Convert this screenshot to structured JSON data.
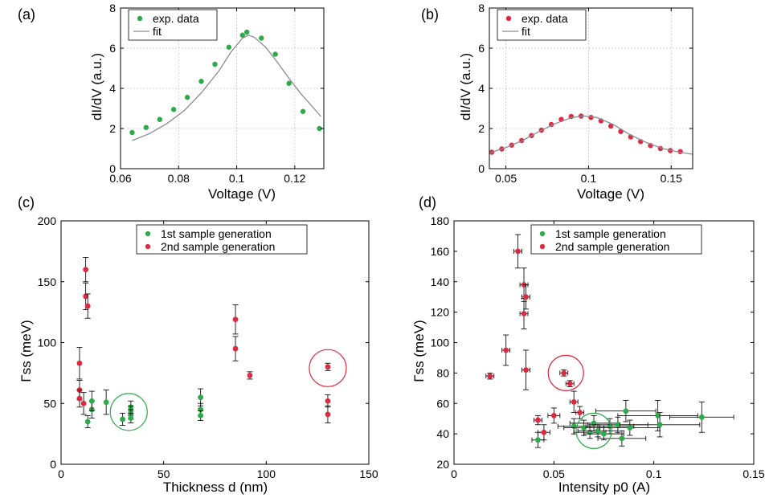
{
  "colors": {
    "green": "#2eaa4a",
    "red": "#dd2a3f",
    "fit": "#8c8a96",
    "axis": "#000000",
    "grid": "#b8b8b8",
    "errorbar": "#111111"
  },
  "chart_data": [
    {
      "panel": "(a)",
      "type": "scatter",
      "xlabel": "Voltage (V)",
      "ylabel": "dI/dV (a.u.)",
      "xlim": [
        0.06,
        0.13
      ],
      "ylim": [
        0,
        8
      ],
      "xticks": [
        "0.06",
        "0.08",
        "0.1",
        "0.12"
      ],
      "xtick_values": [
        0.06,
        0.08,
        0.1,
        0.12
      ],
      "yticks": [
        "0",
        "2",
        "4",
        "6",
        "8"
      ],
      "ytick_values": [
        0,
        2,
        4,
        6,
        8
      ],
      "grid": true,
      "legend_position": "top-left",
      "series": [
        {
          "name": "exp. data",
          "kind": "points",
          "color": "green",
          "x": [
            0.064,
            0.0688,
            0.0735,
            0.0783,
            0.083,
            0.0878,
            0.0925,
            0.0973,
            0.102,
            0.1035,
            0.1085,
            0.1133,
            0.118,
            0.1228,
            0.1285
          ],
          "y": [
            1.8,
            2.05,
            2.45,
            2.95,
            3.55,
            4.35,
            5.2,
            6.05,
            6.65,
            6.8,
            6.5,
            5.7,
            4.25,
            2.85,
            2.0
          ]
        },
        {
          "name": "fit",
          "kind": "line",
          "color": "fit",
          "x": [
            0.064,
            0.07,
            0.076,
            0.082,
            0.088,
            0.094,
            0.098,
            0.102,
            0.104,
            0.106,
            0.11,
            0.114,
            0.118,
            0.122,
            0.126,
            0.129
          ],
          "y": [
            1.4,
            1.75,
            2.25,
            2.9,
            3.8,
            4.9,
            5.8,
            6.5,
            6.65,
            6.55,
            6.05,
            5.3,
            4.5,
            3.75,
            3.1,
            2.6
          ]
        }
      ]
    },
    {
      "panel": "(b)",
      "type": "scatter",
      "xlabel": "Voltage (V)",
      "ylabel": "dI/dV (a.u.)",
      "xlim": [
        0.04,
        0.163
      ],
      "ylim": [
        0,
        8
      ],
      "xticks": [
        "0.05",
        "0.1",
        "0.15"
      ],
      "xtick_values": [
        0.05,
        0.1,
        0.15
      ],
      "yticks": [
        "0",
        "2",
        "4",
        "6",
        "8"
      ],
      "ytick_values": [
        0,
        2,
        4,
        6,
        8
      ],
      "grid": true,
      "legend_position": "top-left",
      "series": [
        {
          "name": "exp. data",
          "kind": "points",
          "color": "red",
          "x": [
            0.0415,
            0.0475,
            0.0535,
            0.0595,
            0.0655,
            0.0715,
            0.0775,
            0.0835,
            0.0895,
            0.0955,
            0.1015,
            0.1075,
            0.1135,
            0.1195,
            0.1255,
            0.1315,
            0.1375,
            0.1435,
            0.1495,
            0.1555
          ],
          "y": [
            0.82,
            0.98,
            1.17,
            1.4,
            1.65,
            1.92,
            2.2,
            2.45,
            2.6,
            2.62,
            2.55,
            2.38,
            2.12,
            1.85,
            1.58,
            1.35,
            1.15,
            1.0,
            0.9,
            0.85
          ]
        },
        {
          "name": "fit",
          "kind": "line",
          "color": "fit",
          "x": [
            0.04,
            0.05,
            0.06,
            0.07,
            0.08,
            0.09,
            0.097,
            0.105,
            0.115,
            0.125,
            0.135,
            0.145,
            0.155,
            0.163
          ],
          "y": [
            0.78,
            1.05,
            1.4,
            1.85,
            2.25,
            2.55,
            2.63,
            2.55,
            2.2,
            1.7,
            1.3,
            1.0,
            0.82,
            0.72
          ]
        }
      ]
    },
    {
      "panel": "(c)",
      "type": "scatter",
      "xlabel": "Thickness d (nm)",
      "ylabel": "Γss (meV)",
      "xlim": [
        0,
        150
      ],
      "ylim": [
        0,
        200
      ],
      "xticks": [
        "0",
        "50",
        "100",
        "150"
      ],
      "xtick_values": [
        0,
        50,
        100,
        150
      ],
      "yticks": [
        "0",
        "50",
        "100",
        "150",
        "200"
      ],
      "ytick_values": [
        0,
        50,
        100,
        150,
        200
      ],
      "grid": false,
      "legend_position": "top-center",
      "series": [
        {
          "name": "1st sample generation",
          "color": "green",
          "points": [
            {
              "x": 13,
              "y": 35,
              "err": 5
            },
            {
              "x": 15,
              "y": 45,
              "err": 7
            },
            {
              "x": 15,
              "y": 52,
              "err": 8
            },
            {
              "x": 22,
              "y": 51,
              "err": 10
            },
            {
              "x": 30,
              "y": 37,
              "err": 5
            },
            {
              "x": 34,
              "y": 47,
              "err": 5
            },
            {
              "x": 34,
              "y": 44,
              "err": 4
            },
            {
              "x": 34,
              "y": 41,
              "err": 4
            },
            {
              "x": 34,
              "y": 38,
              "err": 4
            },
            {
              "x": 68,
              "y": 55,
              "err": 7
            },
            {
              "x": 68,
              "y": 45,
              "err": 5
            },
            {
              "x": 68,
              "y": 40,
              "err": 4
            }
          ]
        },
        {
          "name": "2nd sample generation",
          "color": "red",
          "points": [
            {
              "x": 9,
              "y": 83,
              "err": 13
            },
            {
              "x": 9,
              "y": 61,
              "err": 8
            },
            {
              "x": 9,
              "y": 54,
              "err": 7
            },
            {
              "x": 11,
              "y": 50,
              "err": 9
            },
            {
              "x": 12,
              "y": 160,
              "err": 10
            },
            {
              "x": 12,
              "y": 138,
              "err": 11
            },
            {
              "x": 13,
              "y": 130,
              "err": 10
            },
            {
              "x": 85,
              "y": 119,
              "err": 12
            },
            {
              "x": 85,
              "y": 95,
              "err": 10
            },
            {
              "x": 92,
              "y": 73,
              "err": 3
            },
            {
              "x": 130,
              "y": 80,
              "err": 3
            },
            {
              "x": 130,
              "y": 52,
              "err": 5
            },
            {
              "x": 130,
              "y": 41,
              "err": 7
            }
          ]
        }
      ],
      "highlights": [
        {
          "color": "green",
          "x": 33,
          "y": 43
        },
        {
          "color": "red",
          "x": 130,
          "y": 79
        }
      ]
    },
    {
      "panel": "(d)",
      "type": "scatter",
      "xlabel": "Intensity p0 (A)",
      "ylabel": "Γss (meV)",
      "xlim": [
        0,
        0.15
      ],
      "ylim": [
        20,
        180
      ],
      "xticks": [
        "0",
        "0.05",
        "0.1",
        "0.15"
      ],
      "xtick_values": [
        0,
        0.05,
        0.1,
        0.15
      ],
      "yticks": [
        "20",
        "40",
        "60",
        "80",
        "100",
        "120",
        "140",
        "160",
        "180"
      ],
      "ytick_values": [
        20,
        40,
        60,
        80,
        100,
        120,
        140,
        160,
        180
      ],
      "grid": false,
      "legend_position": "top-center",
      "series": [
        {
          "name": "1st sample generation",
          "color": "green",
          "points": [
            {
              "x": 0.042,
              "y": 36,
              "xerr": 0.003,
              "yerr": 5
            },
            {
              "x": 0.06,
              "y": 45,
              "xerr": 0.008,
              "yerr": 5
            },
            {
              "x": 0.065,
              "y": 44,
              "xerr": 0.01,
              "yerr": 5
            },
            {
              "x": 0.068,
              "y": 41,
              "xerr": 0.008,
              "yerr": 4
            },
            {
              "x": 0.07,
              "y": 47,
              "xerr": 0.012,
              "yerr": 5
            },
            {
              "x": 0.072,
              "y": 42,
              "xerr": 0.01,
              "yerr": 4
            },
            {
              "x": 0.075,
              "y": 40,
              "xerr": 0.01,
              "yerr": 4
            },
            {
              "x": 0.078,
              "y": 45,
              "xerr": 0.012,
              "yerr": 5
            },
            {
              "x": 0.082,
              "y": 46,
              "xerr": 0.015,
              "yerr": 5
            },
            {
              "x": 0.084,
              "y": 37,
              "xerr": 0.012,
              "yerr": 5
            },
            {
              "x": 0.086,
              "y": 55,
              "xerr": 0.015,
              "yerr": 7
            },
            {
              "x": 0.088,
              "y": 44,
              "xerr": 0.015,
              "yerr": 5
            },
            {
              "x": 0.102,
              "y": 52,
              "xerr": 0.02,
              "yerr": 10
            },
            {
              "x": 0.103,
              "y": 46,
              "xerr": 0.02,
              "yerr": 8
            },
            {
              "x": 0.124,
              "y": 51,
              "xerr": 0.016,
              "yerr": 10
            }
          ]
        },
        {
          "name": "2nd sample generation",
          "color": "red",
          "points": [
            {
              "x": 0.018,
              "y": 78,
              "xerr": 0.002,
              "yerr": 2
            },
            {
              "x": 0.026,
              "y": 95,
              "xerr": 0.002,
              "yerr": 10
            },
            {
              "x": 0.032,
              "y": 160,
              "xerr": 0.002,
              "yerr": 11
            },
            {
              "x": 0.035,
              "y": 138,
              "xerr": 0.002,
              "yerr": 11
            },
            {
              "x": 0.035,
              "y": 119,
              "xerr": 0.002,
              "yerr": 10
            },
            {
              "x": 0.036,
              "y": 130,
              "xerr": 0.002,
              "yerr": 8
            },
            {
              "x": 0.036,
              "y": 82,
              "xerr": 0.002,
              "yerr": 13
            },
            {
              "x": 0.042,
              "y": 49,
              "xerr": 0.002,
              "yerr": 3
            },
            {
              "x": 0.045,
              "y": 41,
              "xerr": 0.003,
              "yerr": 5
            },
            {
              "x": 0.05,
              "y": 52,
              "xerr": 0.003,
              "yerr": 5
            },
            {
              "x": 0.055,
              "y": 80,
              "xerr": 0.002,
              "yerr": 2
            },
            {
              "x": 0.058,
              "y": 73,
              "xerr": 0.002,
              "yerr": 2
            },
            {
              "x": 0.06,
              "y": 61,
              "xerr": 0.002,
              "yerr": 7
            },
            {
              "x": 0.063,
              "y": 54,
              "xerr": 0.002,
              "yerr": 4
            }
          ]
        }
      ],
      "highlights": [
        {
          "color": "red",
          "x": 0.056,
          "y": 80
        },
        {
          "color": "green",
          "x": 0.07,
          "y": 42
        }
      ]
    }
  ]
}
